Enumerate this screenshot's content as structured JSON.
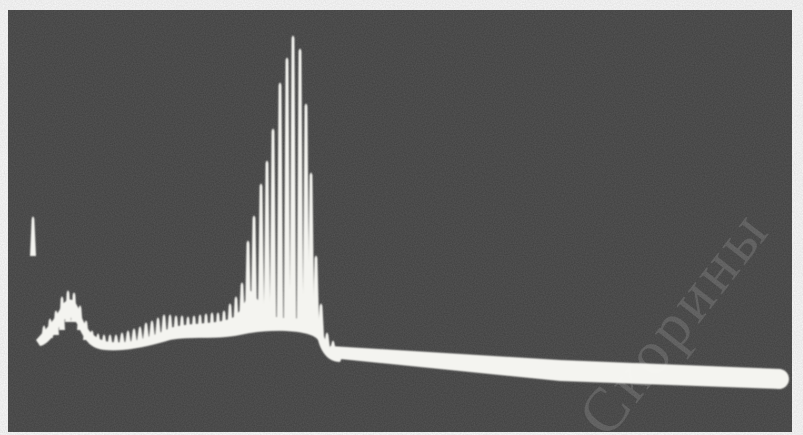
{
  "watermark": "Скорины"
}
